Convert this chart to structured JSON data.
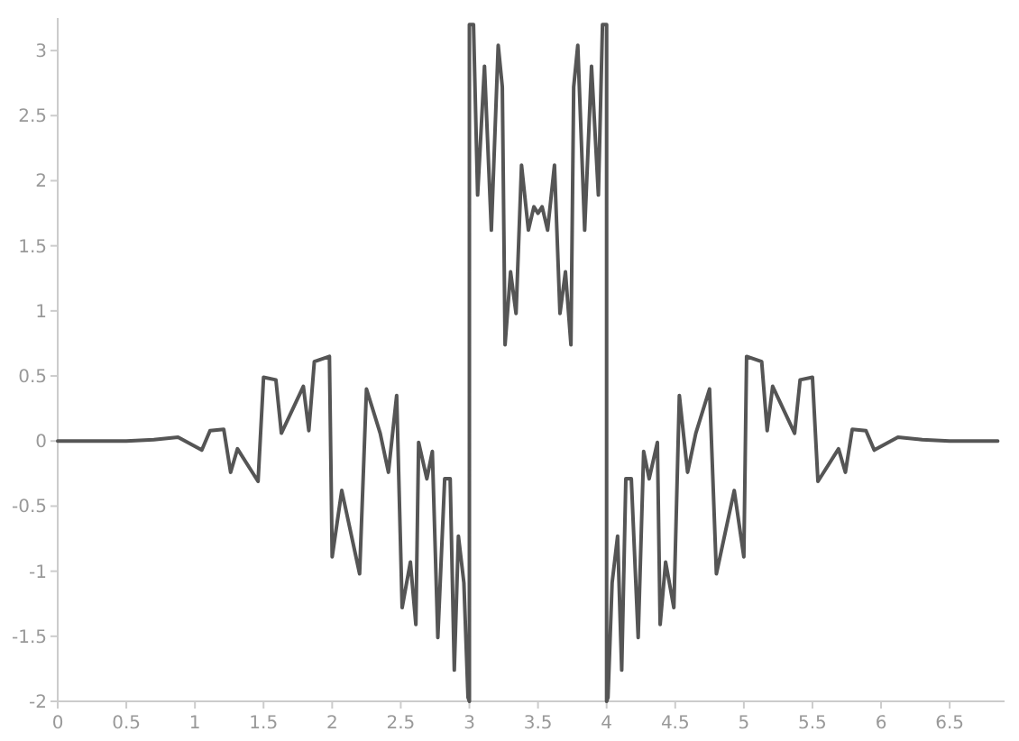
{
  "chart_data": {
    "type": "line",
    "xlim": [
      0,
      6.9
    ],
    "ylim": [
      -2,
      3.25
    ],
    "xticks": [
      0,
      0.5,
      1,
      1.5,
      2,
      2.5,
      3,
      3.5,
      4,
      4.5,
      5,
      5.5,
      6,
      6.5
    ],
    "yticks": [
      -2,
      -1.5,
      -1,
      -0.5,
      0,
      0.5,
      1,
      1.5,
      2,
      2.5,
      3
    ],
    "marker": "none",
    "line_style": "solid",
    "series": [
      {
        "color": "#555555",
        "x": [
          0,
          0.5,
          0.7,
          0.877,
          1.05,
          1.11,
          1.21,
          1.26,
          1.31,
          1.46,
          1.5,
          1.59,
          1.63,
          1.79,
          1.83,
          1.87,
          1.98,
          2.0,
          2.07,
          2.2,
          2.25,
          2.35,
          2.41,
          2.47,
          2.51,
          2.57,
          2.61,
          2.63,
          2.69,
          2.73,
          2.77,
          2.82,
          2.86,
          2.89,
          2.92,
          2.96,
          2.99,
          3.0,
          3.0,
          3.03,
          3.06,
          3.11,
          3.16,
          3.21,
          3.24,
          3.26,
          3.3,
          3.34,
          3.38,
          3.43,
          3.47,
          3.5,
          3.53,
          3.57,
          3.62,
          3.66,
          3.7,
          3.74,
          3.76,
          3.79,
          3.84,
          3.89,
          3.94,
          3.97,
          4.0,
          4.0,
          4.01,
          4.04,
          4.08,
          4.11,
          4.14,
          4.18,
          4.23,
          4.27,
          4.31,
          4.37,
          4.39,
          4.43,
          4.49,
          4.53,
          4.59,
          4.65,
          4.75,
          4.8,
          4.93,
          5.0,
          5.02,
          5.13,
          5.17,
          5.21,
          5.37,
          5.41,
          5.5,
          5.54,
          5.69,
          5.74,
          5.79,
          5.89,
          5.95,
          6.123,
          6.3,
          6.5,
          6.85
        ],
        "values": [
          0,
          0,
          0.01,
          0.03,
          -0.07,
          0.08,
          0.09,
          -0.24,
          -0.06,
          -0.31,
          0.49,
          0.47,
          0.06,
          0.42,
          0.08,
          0.61,
          0.65,
          -0.89,
          -0.38,
          -1.02,
          0.4,
          0.06,
          -0.24,
          0.35,
          -1.28,
          -0.93,
          -1.41,
          -0.01,
          -0.29,
          -0.08,
          -1.51,
          -0.29,
          -0.29,
          -1.76,
          -0.73,
          -1.09,
          -1.97,
          -2,
          3.2,
          3.2,
          1.89,
          2.88,
          1.62,
          3.04,
          2.72,
          0.74,
          1.3,
          0.98,
          2.12,
          1.62,
          1.8,
          1.75,
          1.8,
          1.62,
          2.12,
          0.98,
          1.3,
          0.74,
          2.72,
          3.04,
          1.62,
          2.88,
          1.89,
          3.2,
          3.2,
          -2,
          -1.97,
          -1.09,
          -0.73,
          -1.76,
          -0.29,
          -0.29,
          -1.51,
          -0.08,
          -0.29,
          -0.01,
          -1.41,
          -0.93,
          -1.28,
          0.35,
          -0.24,
          0.06,
          0.4,
          -1.02,
          -0.38,
          -0.89,
          0.65,
          0.61,
          0.08,
          0.42,
          0.06,
          0.47,
          0.49,
          -0.31,
          -0.06,
          -0.24,
          0.09,
          0.08,
          -0.07,
          0.03,
          0.01,
          0,
          0
        ]
      }
    ]
  }
}
